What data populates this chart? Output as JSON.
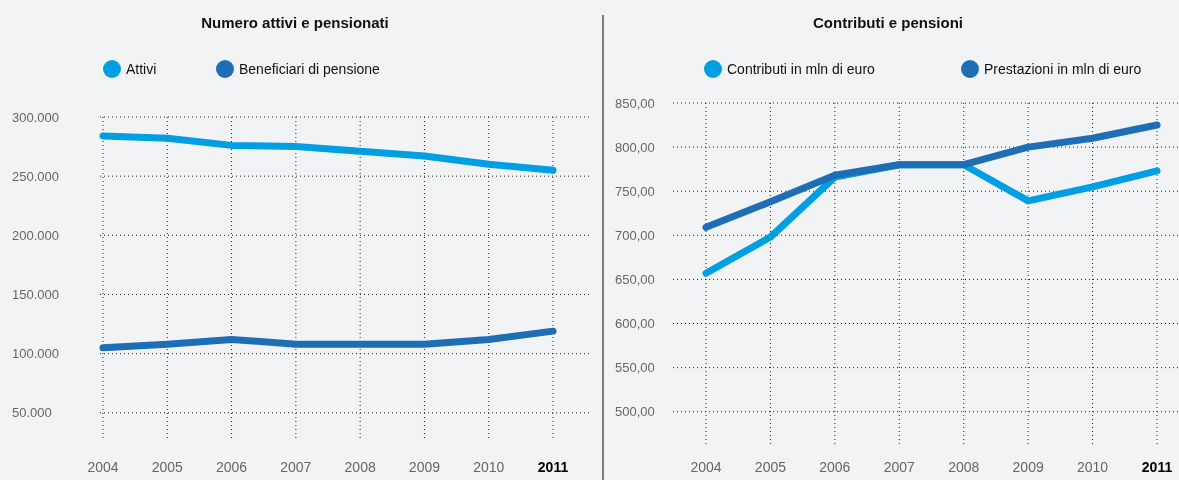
{
  "chart_data": [
    {
      "type": "line",
      "title": "Numero attivi e pensionati",
      "categories": [
        "2004",
        "2005",
        "2006",
        "2007",
        "2008",
        "2009",
        "2010",
        "2011"
      ],
      "series": [
        {
          "name": "Attivi",
          "color": "#009fe3",
          "values": [
            284000,
            282000,
            276000,
            275000,
            271000,
            267000,
            260000,
            255000
          ]
        },
        {
          "name": "Beneficiari di pensione",
          "color": "#1d6eb5",
          "values": [
            105000,
            108000,
            112000,
            108000,
            108000,
            108000,
            112000,
            119000
          ]
        }
      ],
      "ylim": [
        27000,
        300000
      ],
      "yticks": [
        {
          "value": 50000,
          "label": "50.000"
        },
        {
          "value": 100000,
          "label": "100.000"
        },
        {
          "value": 150000,
          "label": "150.000"
        },
        {
          "value": 200000,
          "label": "200.000"
        },
        {
          "value": 250000,
          "label": "250.000"
        },
        {
          "value": 300000,
          "label": "300.000"
        }
      ],
      "grid": true,
      "legend": "top",
      "marker": "none",
      "line_style": "solid"
    },
    {
      "type": "line",
      "title": "Contributi e pensioni",
      "categories": [
        "2004",
        "2005",
        "2006",
        "2007",
        "2008",
        "2009",
        "2010",
        "2011"
      ],
      "series": [
        {
          "name": "Contributi in mln di euro",
          "color": "#009fe3",
          "values": [
            657,
            698,
            766,
            780,
            780,
            739,
            755,
            773
          ]
        },
        {
          "name": "Prestazioni in mln di euro",
          "color": "#1d6eb5",
          "values": [
            709,
            738,
            768,
            780,
            780,
            800,
            810,
            825
          ]
        }
      ],
      "ylim": [
        460,
        850
      ],
      "yticks": [
        {
          "value": 500,
          "label": "500,00"
        },
        {
          "value": 550,
          "label": "550,00"
        },
        {
          "value": 600,
          "label": "600,00"
        },
        {
          "value": 650,
          "label": "650,00"
        },
        {
          "value": 700,
          "label": "700,00"
        },
        {
          "value": 750,
          "label": "750,00"
        },
        {
          "value": 800,
          "label": "800,00"
        },
        {
          "value": 850,
          "label": "850,00"
        }
      ],
      "grid": true,
      "legend": "top",
      "marker": "none",
      "line_style": "solid"
    }
  ]
}
